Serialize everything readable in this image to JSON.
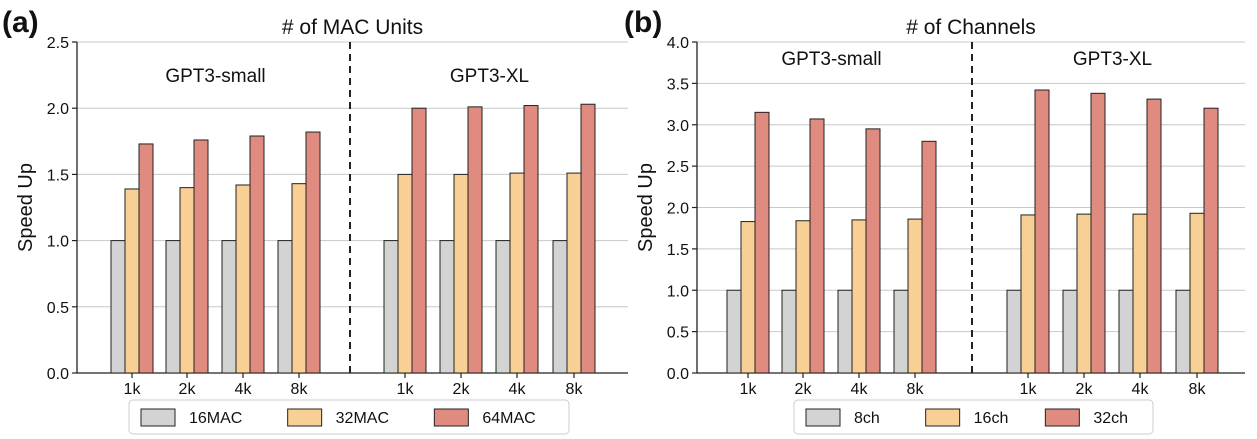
{
  "chart_data": [
    {
      "type": "bar",
      "panel_label": "(a)",
      "title": "# of MAC Units",
      "xlabel": "",
      "ylabel": "Speed Up",
      "ylim": [
        0,
        2.5
      ],
      "yticks": [
        "0.0",
        "0.5",
        "1.0",
        "1.5",
        "2.0",
        "2.5"
      ],
      "grid": true,
      "groups": [
        {
          "name": "GPT3-small",
          "categories": [
            "1k",
            "2k",
            "4k",
            "8k"
          ],
          "series": [
            {
              "name": "16MAC",
              "values": [
                1.0,
                1.0,
                1.0,
                1.0
              ]
            },
            {
              "name": "32MAC",
              "values": [
                1.39,
                1.4,
                1.42,
                1.43
              ]
            },
            {
              "name": "64MAC",
              "values": [
                1.73,
                1.76,
                1.79,
                1.82
              ]
            }
          ]
        },
        {
          "name": "GPT3-XL",
          "categories": [
            "1k",
            "2k",
            "4k",
            "8k"
          ],
          "series": [
            {
              "name": "16MAC",
              "values": [
                1.0,
                1.0,
                1.0,
                1.0
              ]
            },
            {
              "name": "32MAC",
              "values": [
                1.5,
                1.5,
                1.51,
                1.51
              ]
            },
            {
              "name": "64MAC",
              "values": [
                2.0,
                2.01,
                2.02,
                2.03
              ]
            }
          ]
        }
      ],
      "legend": [
        "16MAC",
        "32MAC",
        "64MAC"
      ],
      "legend_position": "bottom-center",
      "colors": [
        "#d3d3d3",
        "#f8cf94",
        "#e08b80"
      ]
    },
    {
      "type": "bar",
      "panel_label": "(b)",
      "title": "# of Channels",
      "xlabel": "",
      "ylabel": "Speed Up",
      "ylim": [
        0,
        4.0
      ],
      "yticks": [
        "0.0",
        "0.5",
        "1.0",
        "1.5",
        "2.0",
        "2.5",
        "3.0",
        "3.5",
        "4.0"
      ],
      "grid": true,
      "groups": [
        {
          "name": "GPT3-small",
          "categories": [
            "1k",
            "2k",
            "4k",
            "8k"
          ],
          "series": [
            {
              "name": "8ch",
              "values": [
                1.0,
                1.0,
                1.0,
                1.0
              ]
            },
            {
              "name": "16ch",
              "values": [
                1.83,
                1.84,
                1.85,
                1.86
              ]
            },
            {
              "name": "32ch",
              "values": [
                3.15,
                3.07,
                2.95,
                2.8
              ]
            }
          ]
        },
        {
          "name": "GPT3-XL",
          "categories": [
            "1k",
            "2k",
            "4k",
            "8k"
          ],
          "series": [
            {
              "name": "8ch",
              "values": [
                1.0,
                1.0,
                1.0,
                1.0
              ]
            },
            {
              "name": "16ch",
              "values": [
                1.91,
                1.92,
                1.92,
                1.93
              ]
            },
            {
              "name": "32ch",
              "values": [
                3.42,
                3.38,
                3.31,
                3.2
              ]
            }
          ]
        }
      ],
      "legend": [
        "8ch",
        "16ch",
        "32ch"
      ],
      "legend_position": "bottom-center",
      "colors": [
        "#d3d3d3",
        "#f8cf94",
        "#e08b80"
      ]
    }
  ]
}
